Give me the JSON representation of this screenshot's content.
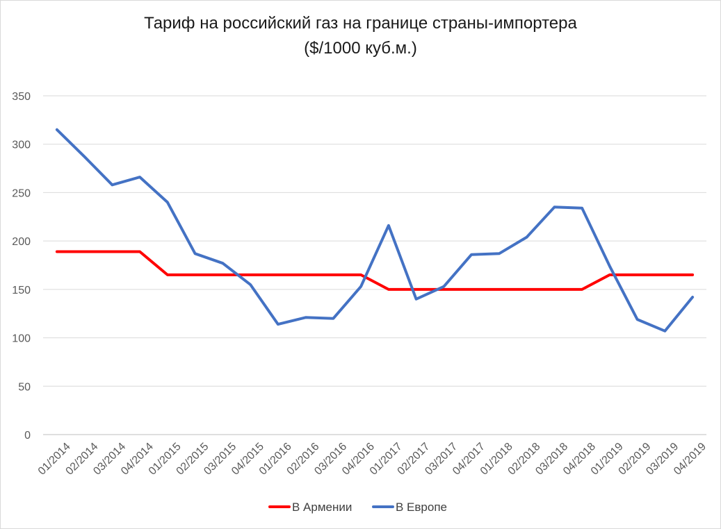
{
  "chart_data": {
    "type": "line",
    "title": "Тариф на российский газ на границе страны-импортера",
    "subtitle": "($/1000 куб.м.)",
    "xlabel": "",
    "ylabel": "",
    "ylim": [
      0,
      350
    ],
    "yticks": [
      0,
      50,
      100,
      150,
      200,
      250,
      300,
      350
    ],
    "grid": true,
    "legend": "bottom",
    "categories": [
      "01/2014",
      "02/2014",
      "03/2014",
      "04/2014",
      "01/2015",
      "02/2015",
      "03/2015",
      "04/2015",
      "01/2016",
      "02/2016",
      "03/2016",
      "04/2016",
      "01/2017",
      "02/2017",
      "03/2017",
      "04/2017",
      "01/2018",
      "02/2018",
      "03/2018",
      "04/2018",
      "01/2019",
      "02/2019",
      "03/2019",
      "04/2019"
    ],
    "series": [
      {
        "name": "В Армении",
        "color": "#ff0000",
        "values": [
          189,
          189,
          189,
          189,
          165,
          165,
          165,
          165,
          165,
          165,
          165,
          165,
          150,
          150,
          150,
          150,
          150,
          150,
          150,
          150,
          165,
          165,
          165,
          165
        ]
      },
      {
        "name": "В Европе",
        "color": "#4472c4",
        "values": [
          315,
          287,
          258,
          266,
          240,
          187,
          177,
          155,
          114,
          121,
          120,
          153,
          216,
          140,
          153,
          186,
          187,
          204,
          235,
          234,
          174,
          119,
          107,
          142
        ]
      }
    ]
  }
}
